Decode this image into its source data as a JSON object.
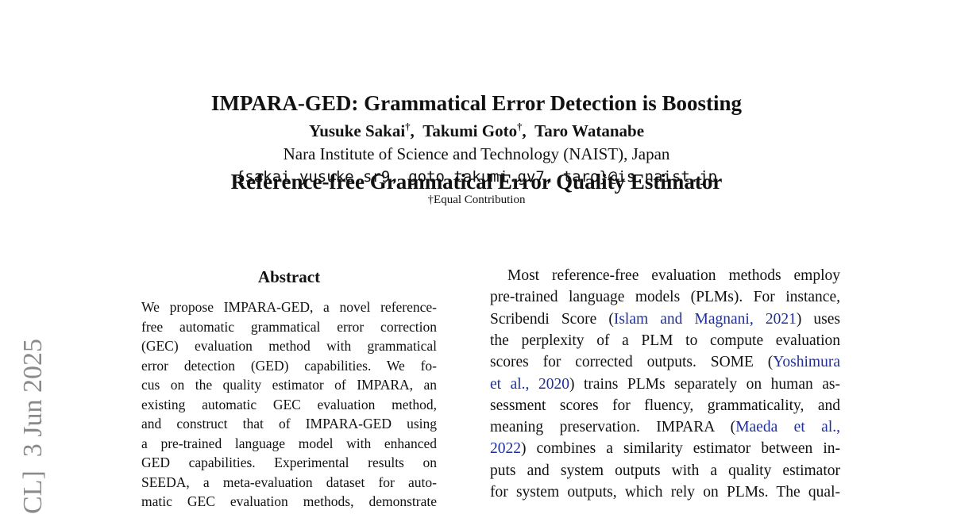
{
  "header": {
    "title_lines": [
      "IMPARA-GED: Grammatical Error Detection is Boosting",
      "Reference-free Grammatical Error Quality Estimator"
    ],
    "authors": [
      {
        "name": "Yusuke Sakai",
        "mark": "†"
      },
      {
        "name": "Takumi Goto",
        "mark": "†"
      },
      {
        "name": "Taro Watanabe"
      }
    ],
    "author_separator": ",",
    "affiliation": "Nara Institute of Science and Technology (NAIST), Japan",
    "email": "{sakai.yusuke.sr9, goto.takumi.gv7, taro}@is.naist.jp",
    "note": "†Equal Contribution"
  },
  "sidebar": "CL]  3 Jun 2025",
  "abstract": {
    "heading": "Abstract",
    "lines": [
      "We propose IMPARA-GED, a novel reference-",
      "free automatic grammatical error correction",
      "(GEC) evaluation method with grammatical",
      "error detection (GED) capabilities.  We fo-",
      "cus on the quality estimator of IMPARA, an",
      "existing automatic GEC evaluation method,",
      "and construct that of IMPARA-GED using",
      "a pre-trained language model with enhanced",
      "GED capabilities.  Experimental results on",
      "SEEDA, a meta-evaluation dataset for auto-",
      "matic GEC evaluation methods, demonstrate"
    ]
  },
  "body": {
    "lines": [
      [
        "Most reference-free evaluation methods employ"
      ],
      [
        "pre-trained language models (PLMs). For instance,"
      ],
      [
        "Scribendi Score (",
        {
          "cite": "Islam and Magnani, 2021"
        },
        ") uses"
      ],
      [
        "the perplexity of a PLM to compute evaluation"
      ],
      [
        "scores for corrected outputs.  SOME (",
        {
          "cite": "Yoshimura"
        }
      ],
      [
        {
          "cite": "et al., 2020"
        },
        ") trains PLMs separately on human as-"
      ],
      [
        "sessment scores for fluency, grammaticality, and"
      ],
      [
        "meaning preservation.  IMPARA (",
        {
          "cite": "Maeda et al.,"
        }
      ],
      [
        {
          "cite": "2022"
        },
        ") combines a similarity estimator between in-"
      ],
      [
        "puts and system outputs with a quality estimator"
      ],
      [
        "for system outputs, which rely on PLMs. The qual-"
      ]
    ]
  }
}
